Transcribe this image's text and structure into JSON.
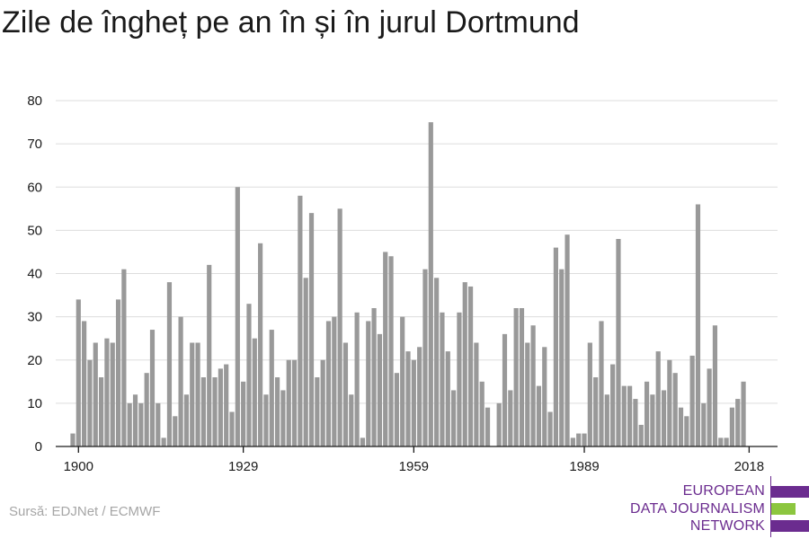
{
  "title": "Zile de îngheț pe an în și în jurul Dortmund",
  "source": "Sursă: EDJNet / ECMWF",
  "logo": {
    "line1": "EUROPEAN",
    "line2": "DATA JOURNALISM",
    "line3": "NETWORK",
    "colors": {
      "text": "#6b2c8f",
      "purple": "#6b2c8f",
      "green": "#8cc63f"
    }
  },
  "colors": {
    "bar": "#999999",
    "grid": "#dddddd",
    "axis": "#1a1a1a",
    "tick_text": "#1a1a1a"
  },
  "chart_data": {
    "type": "bar",
    "title": "Zile de îngheț pe an în și în jurul Dortmund",
    "xlabel": "",
    "ylabel": "",
    "ylim": [
      0,
      80
    ],
    "yticks": [
      0,
      10,
      20,
      30,
      40,
      50,
      60,
      70,
      80
    ],
    "xticks": [
      1900,
      1929,
      1959,
      1989,
      2018
    ],
    "grid": true,
    "x": [
      1899,
      1900,
      1901,
      1902,
      1903,
      1904,
      1905,
      1906,
      1907,
      1908,
      1909,
      1910,
      1911,
      1912,
      1913,
      1914,
      1915,
      1916,
      1917,
      1918,
      1919,
      1920,
      1921,
      1922,
      1923,
      1924,
      1925,
      1926,
      1927,
      1928,
      1929,
      1930,
      1931,
      1932,
      1933,
      1934,
      1935,
      1936,
      1937,
      1938,
      1939,
      1940,
      1941,
      1942,
      1943,
      1944,
      1945,
      1946,
      1947,
      1948,
      1949,
      1950,
      1951,
      1952,
      1953,
      1954,
      1955,
      1956,
      1957,
      1958,
      1959,
      1960,
      1961,
      1962,
      1963,
      1964,
      1965,
      1966,
      1967,
      1968,
      1969,
      1970,
      1971,
      1972,
      1973,
      1974,
      1975,
      1976,
      1977,
      1978,
      1979,
      1980,
      1981,
      1982,
      1983,
      1984,
      1985,
      1986,
      1987,
      1988,
      1989,
      1990,
      1991,
      1992,
      1993,
      1994,
      1995,
      1996,
      1997,
      1998,
      1999,
      2000,
      2001,
      2002,
      2003,
      2004,
      2005,
      2006,
      2007,
      2008,
      2009,
      2010,
      2011,
      2012,
      2013,
      2014,
      2015,
      2016,
      2017,
      2018
    ],
    "values": [
      3,
      34,
      29,
      20,
      24,
      16,
      25,
      24,
      34,
      41,
      10,
      12,
      10,
      17,
      27,
      10,
      2,
      38,
      7,
      30,
      12,
      24,
      24,
      16,
      42,
      16,
      18,
      19,
      8,
      60,
      15,
      33,
      25,
      47,
      12,
      27,
      16,
      13,
      20,
      20,
      58,
      39,
      54,
      16,
      20,
      29,
      30,
      55,
      24,
      12,
      31,
      2,
      29,
      32,
      26,
      45,
      44,
      17,
      30,
      22,
      20,
      23,
      41,
      75,
      39,
      31,
      22,
      13,
      31,
      38,
      37,
      24,
      15,
      9,
      0,
      10,
      26,
      13,
      32,
      32,
      24,
      28,
      14,
      23,
      8,
      46,
      41,
      49,
      2,
      3,
      3,
      24,
      16,
      29,
      12,
      19,
      48,
      14,
      14,
      11,
      5,
      15,
      12,
      22,
      13,
      20,
      17,
      9,
      7,
      21,
      56,
      10,
      18,
      28,
      2,
      2,
      9,
      11,
      15,
      0
    ]
  }
}
